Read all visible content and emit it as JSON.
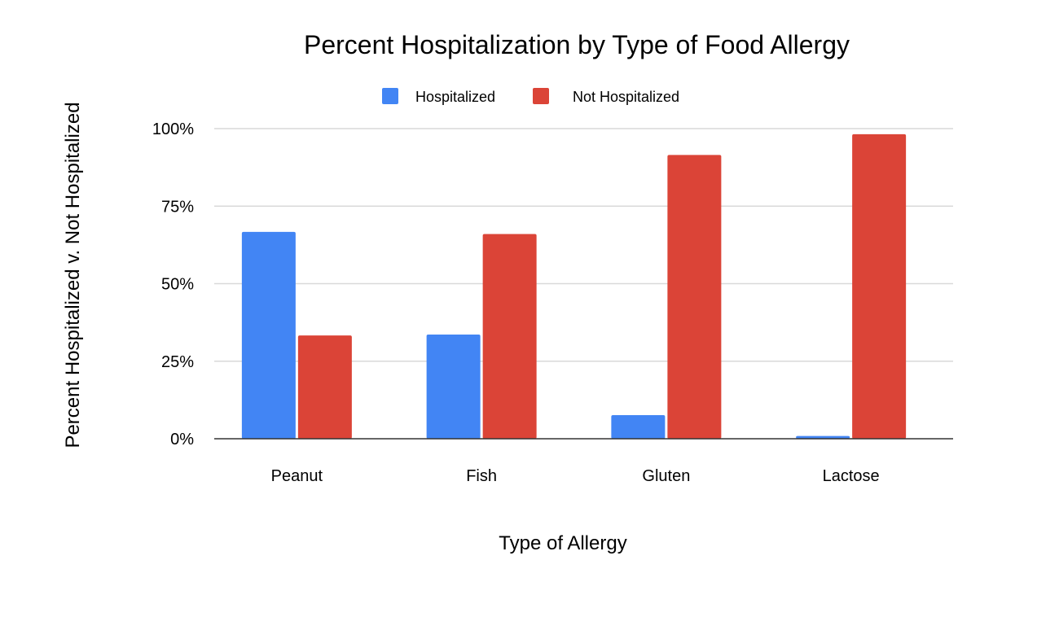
{
  "chart_data": {
    "type": "bar",
    "title": "Percent Hospitalization by Type of Food Allergy",
    "xlabel": "Type of Allergy",
    "ylabel": "Percent Hospitalized v. Not Hospitalized",
    "categories": [
      "Peanut",
      "Fish",
      "Gluten",
      "Lactose"
    ],
    "series": [
      {
        "name": "Hospitalized",
        "color": "#4285f4",
        "values": [
          66.7,
          33.6,
          7.6,
          0.9
        ]
      },
      {
        "name": "Not Hospitalized",
        "color": "#db4437",
        "values": [
          33.3,
          66.0,
          91.5,
          98.2
        ]
      }
    ],
    "ylim": [
      0,
      100
    ],
    "yticks": [
      "0%",
      "25%",
      "50%",
      "75%",
      "100%"
    ],
    "grid": true,
    "legend": "top"
  }
}
